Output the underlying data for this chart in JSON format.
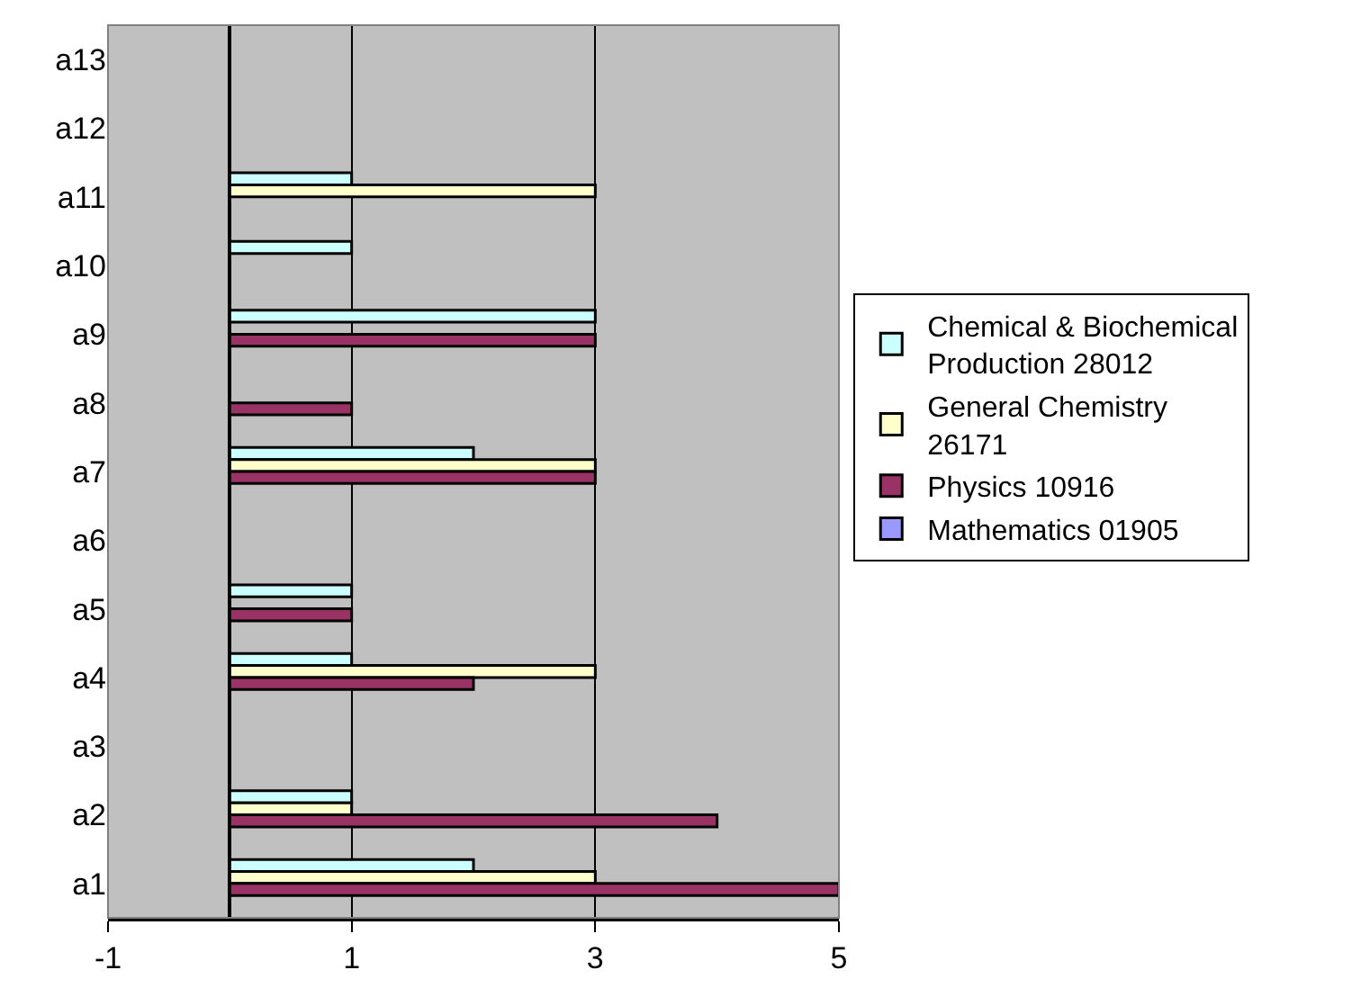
{
  "chart_data": {
    "type": "bar",
    "orientation": "horizontal",
    "categories": [
      "a13",
      "a12",
      "a11",
      "a10",
      "a9",
      "a8",
      "a7",
      "a6",
      "a5",
      "a4",
      "a3",
      "a2",
      "a1"
    ],
    "series": [
      {
        "name": "Chemical & Biochemical Production 28012",
        "color": "#ccffff",
        "values": [
          null,
          null,
          1,
          1,
          3,
          null,
          2,
          null,
          1,
          1,
          null,
          1,
          2
        ]
      },
      {
        "name": "General Chemistry 26171",
        "color": "#ffffcc",
        "values": [
          null,
          null,
          3,
          null,
          null,
          null,
          3,
          null,
          null,
          3,
          null,
          1,
          3
        ]
      },
      {
        "name": "Physics 10916",
        "color": "#993366",
        "values": [
          null,
          null,
          null,
          null,
          3,
          1,
          3,
          null,
          1,
          2,
          null,
          4,
          5
        ]
      },
      {
        "name": "Mathematics 01905",
        "color": "#9999ff",
        "values": [
          null,
          null,
          null,
          null,
          null,
          null,
          null,
          null,
          null,
          null,
          null,
          null,
          null
        ]
      }
    ],
    "xlim": [
      -1,
      5
    ],
    "xticks": [
      -1,
      1,
      3,
      5
    ],
    "grid": "x",
    "legend": "right"
  }
}
